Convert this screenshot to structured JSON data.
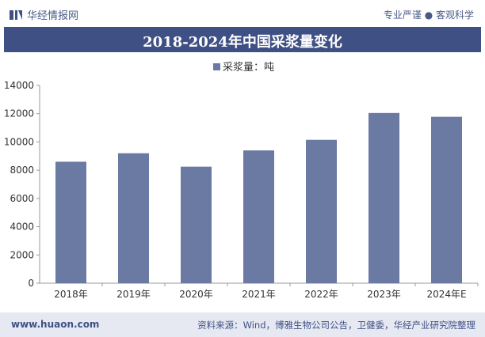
{
  "header": {
    "brand_name": "华经情报网",
    "tagline": "专业严谨 ● 客观科学"
  },
  "chart_data": {
    "type": "bar",
    "title": "2018-2024年中国采浆量变化",
    "categories": [
      "2018年",
      "2019年",
      "2020年",
      "2021年",
      "2022年",
      "2023年",
      "2024年E"
    ],
    "series": [
      {
        "name": "采浆量：吨",
        "values": [
          8600,
          9200,
          8250,
          9400,
          10150,
          12050,
          11780
        ]
      }
    ],
    "ylim": [
      0,
      14000
    ],
    "yticks": [
      0,
      2000,
      4000,
      6000,
      8000,
      10000,
      12000,
      14000
    ],
    "xlabel": "",
    "ylabel": "",
    "legend_position": "top",
    "grid": false,
    "colors": {
      "bar": "#6b7aa3",
      "axis": "#999999",
      "title_bg": "#3f5084"
    }
  },
  "footer": {
    "url": "www.huaon.com",
    "source": "资料来源：Wind，博雅生物公司公告，卫健委，华经产业研究院整理"
  }
}
